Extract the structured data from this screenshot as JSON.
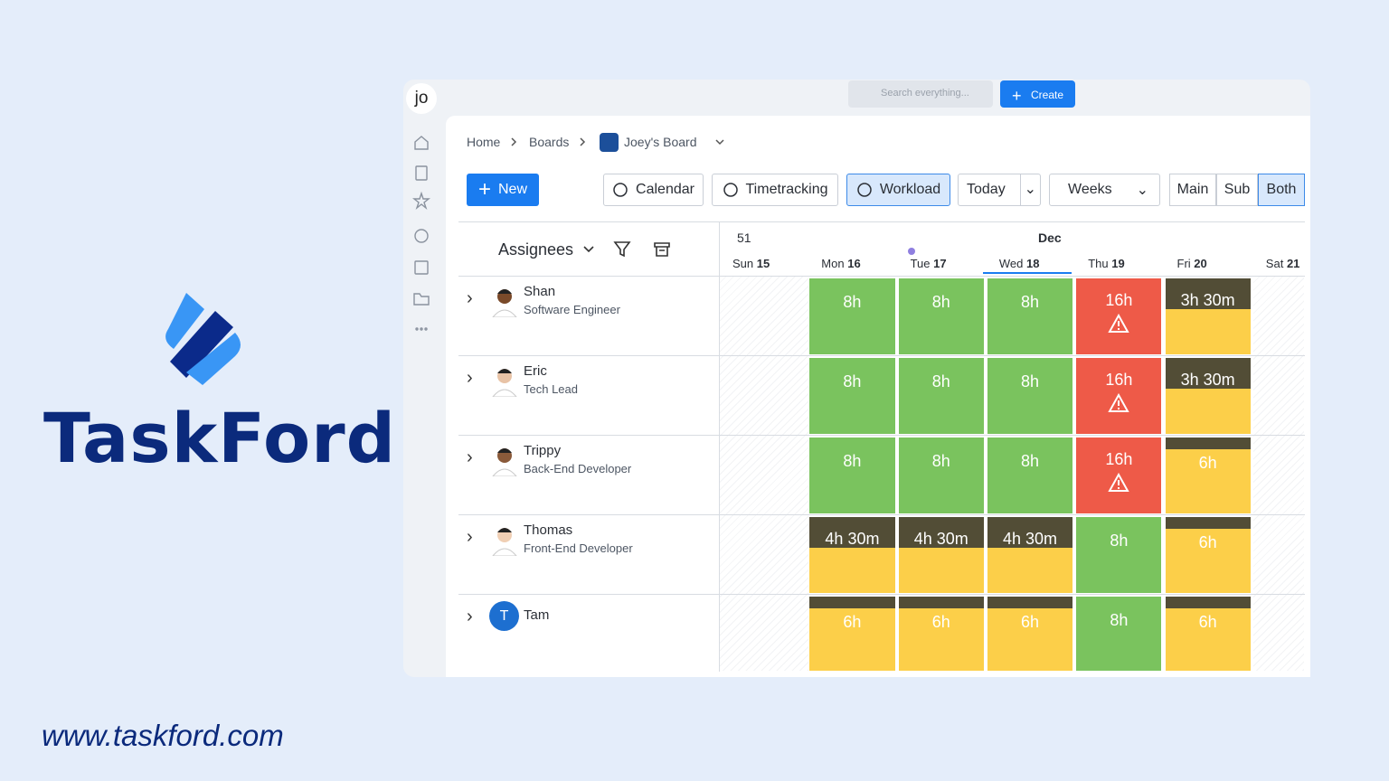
{
  "brand": {
    "name": "TaskFord",
    "url": "www.taskford.com"
  },
  "app": {
    "avatar": "jo",
    "search": "Search everything...",
    "create": "Create",
    "breadcrumb": [
      "Home",
      "Boards",
      "Joey's Board"
    ],
    "toolbar": {
      "new": "New",
      "views": [
        {
          "label": "Calendar",
          "active": false
        },
        {
          "label": "Timetracking",
          "active": false
        },
        {
          "label": "Workload",
          "active": true
        }
      ],
      "today": "Today",
      "range": "Weeks",
      "modes": [
        {
          "label": "Main",
          "active": false
        },
        {
          "label": "Sub",
          "active": false
        },
        {
          "label": "Both",
          "active": true
        }
      ]
    },
    "grid": {
      "assignees": "Assignees",
      "week": "51",
      "month": "Dec",
      "days": [
        {
          "name": "Sun",
          "num": "15",
          "weekend": true
        },
        {
          "name": "Mon",
          "num": "16"
        },
        {
          "name": "Tue",
          "num": "17",
          "dot": true
        },
        {
          "name": "Wed",
          "num": "18",
          "current": true
        },
        {
          "name": "Thu",
          "num": "19"
        },
        {
          "name": "Fri",
          "num": "20"
        },
        {
          "name": "Sat",
          "num": "21",
          "weekend": true
        }
      ],
      "rows": [
        {
          "name": "Shan",
          "role": "Software Engineer",
          "skin": "#7a4a2a",
          "cells": [
            null,
            {
              "label": "8h",
              "state": "full"
            },
            {
              "label": "8h",
              "state": "full"
            },
            {
              "label": "8h",
              "state": "full"
            },
            {
              "label": "16h",
              "state": "over"
            },
            {
              "label": "3h 30m",
              "state": "low"
            },
            null
          ]
        },
        {
          "name": "Eric",
          "role": "Tech Lead",
          "skin": "#e8c3a6",
          "cells": [
            null,
            {
              "label": "8h",
              "state": "full"
            },
            {
              "label": "8h",
              "state": "full"
            },
            {
              "label": "8h",
              "state": "full"
            },
            {
              "label": "16h",
              "state": "over"
            },
            {
              "label": "3h 30m",
              "state": "low"
            },
            null
          ]
        },
        {
          "name": "Trippy",
          "role": "Back-End Developer",
          "skin": "#8a5a3a",
          "cells": [
            null,
            {
              "label": "8h",
              "state": "full"
            },
            {
              "label": "8h",
              "state": "full"
            },
            {
              "label": "8h",
              "state": "full"
            },
            {
              "label": "16h",
              "state": "over"
            },
            {
              "label": "6h",
              "state": "partial"
            },
            null
          ]
        },
        {
          "name": "Thomas",
          "role": "Front-End Developer",
          "skin": "#f0cfb4",
          "cells": [
            null,
            {
              "label": "4h 30m",
              "state": "low"
            },
            {
              "label": "4h 30m",
              "state": "low"
            },
            {
              "label": "4h 30m",
              "state": "low"
            },
            {
              "label": "8h",
              "state": "full"
            },
            {
              "label": "6h",
              "state": "partial"
            },
            null
          ]
        },
        {
          "name": "Tam",
          "initial": "T",
          "cells": [
            null,
            {
              "label": "6h",
              "state": "partial"
            },
            {
              "label": "6h",
              "state": "partial"
            },
            {
              "label": "6h",
              "state": "partial"
            },
            {
              "label": "8h",
              "state": "full"
            },
            {
              "label": "6h",
              "state": "partial"
            },
            null
          ]
        }
      ]
    }
  }
}
